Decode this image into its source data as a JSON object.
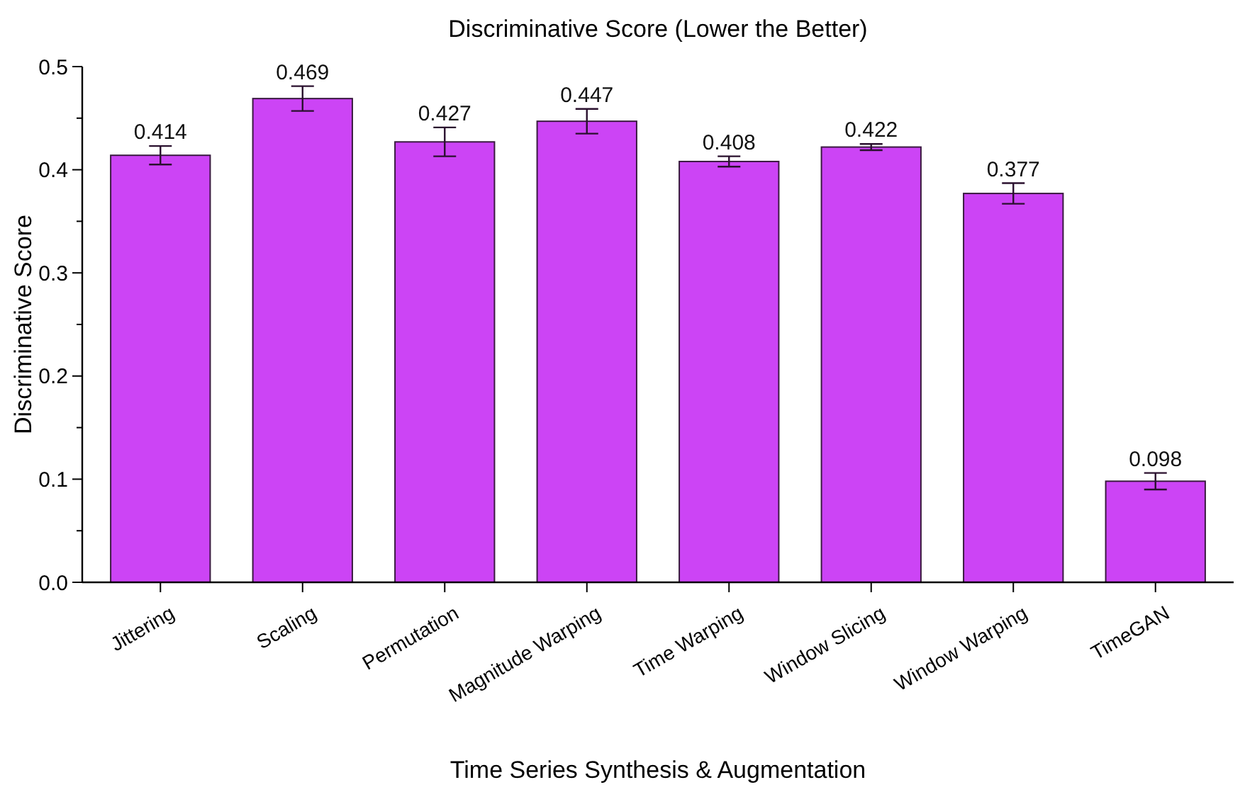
{
  "chart_data": {
    "type": "bar",
    "title": "Discriminative Score (Lower the Better)",
    "xlabel": "Time Series Synthesis & Augmentation",
    "ylabel": "Discriminative Score",
    "categories": [
      "Jittering",
      "Scaling",
      "Permutation",
      "Magnitude Warping",
      "Time Warping",
      "Window Slicing",
      "Window Warping",
      "TimeGAN"
    ],
    "values": [
      0.414,
      0.469,
      0.427,
      0.447,
      0.408,
      0.422,
      0.377,
      0.098
    ],
    "errors": [
      0.009,
      0.012,
      0.014,
      0.012,
      0.005,
      0.003,
      0.01,
      0.008
    ],
    "color": "#cc44f5",
    "data_labels": true,
    "ylim": [
      0,
      0.5
    ],
    "yticks": [
      {
        "value": 0,
        "label": "0.0"
      },
      {
        "value": 0.05,
        "label": null
      },
      0.1,
      {
        "value": 0.15,
        "label": null
      },
      0.2,
      {
        "value": 0.25,
        "label": null
      },
      0.3,
      {
        "value": 0.35,
        "label": null
      },
      0.4,
      {
        "value": 0.45,
        "label": null
      },
      0.5
    ],
    "grid": false
  }
}
